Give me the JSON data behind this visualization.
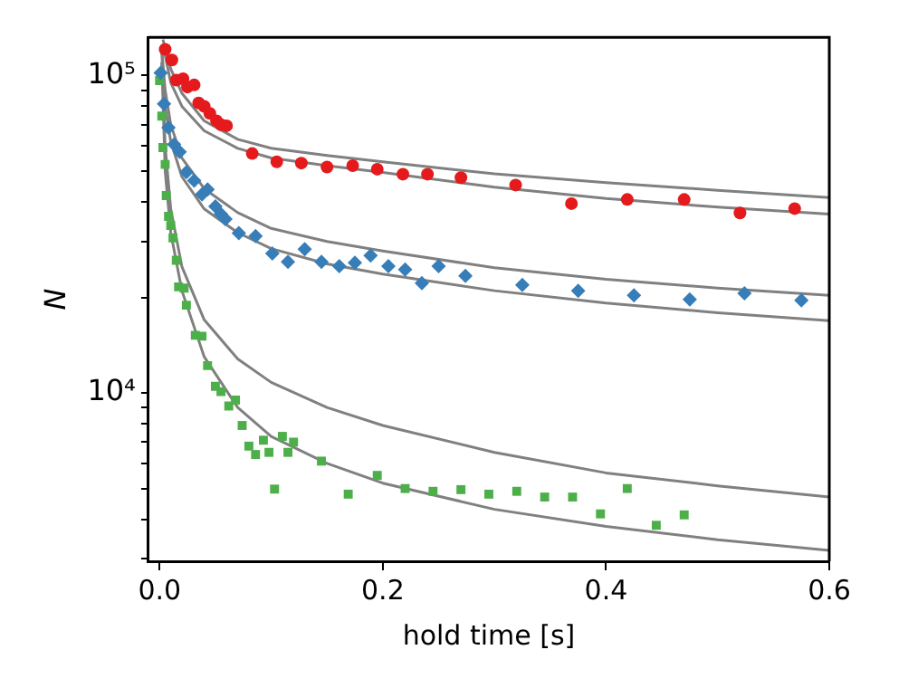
{
  "chart_data": {
    "type": "scatter",
    "xlabel": "hold time [s]",
    "ylabel": "N",
    "log": "y",
    "xlim": [
      -0.01,
      0.6
    ],
    "xticks": [
      {
        "value": 0,
        "label": "0.0"
      },
      0.2,
      0.4,
      {
        "value": 0.6,
        "label": "0.6"
      }
    ],
    "ylim": [
      2950,
      132000
    ],
    "yticks": [
      {
        "value": 3000,
        "label": null
      },
      {
        "value": 4000,
        "label": null
      },
      {
        "value": 5000,
        "label": null
      },
      {
        "value": 6000,
        "label": null
      },
      {
        "value": 7000,
        "label": null
      },
      {
        "value": 8000,
        "label": null
      },
      {
        "value": 9000,
        "label": null
      },
      {
        "value": 10000,
        "label": "10⁴"
      },
      {
        "value": 20000,
        "label": null
      },
      {
        "value": 30000,
        "label": null
      },
      {
        "value": 40000,
        "label": null
      },
      {
        "value": 50000,
        "label": null
      },
      {
        "value": 60000,
        "label": null
      },
      {
        "value": 70000,
        "label": null
      },
      {
        "value": 80000,
        "label": null
      },
      {
        "value": 90000,
        "label": null
      },
      {
        "value": 100000,
        "label": "10⁵"
      }
    ],
    "grid": false,
    "legend": false,
    "series": [
      {
        "type": "scatter",
        "marker": "circle",
        "color": "#e41a1c",
        "x": [
          0.005,
          0.011,
          0.015,
          0.021,
          0.025,
          0.031,
          0.035,
          0.04,
          0.045,
          0.051,
          0.055,
          0.06,
          0.083,
          0.105,
          0.127,
          0.15,
          0.173,
          0.195,
          0.218,
          0.24,
          0.27,
          0.319,
          0.369,
          0.419,
          0.47,
          0.52,
          0.569
        ],
        "values": [
          121000,
          112000,
          96800,
          97700,
          92000,
          93400,
          82000,
          80000,
          76000,
          72000,
          70000,
          69500,
          56800,
          53500,
          53000,
          51500,
          52000,
          50700,
          48900,
          48900,
          47700,
          45200,
          39500,
          40700,
          40700,
          36900,
          38100
        ]
      },
      {
        "type": "scatter",
        "marker": "diamond",
        "color": "#377eb8",
        "x": [
          0.001,
          0.004,
          0.008,
          0.013,
          0.018,
          0.024,
          0.031,
          0.038,
          0.043,
          0.05,
          0.055,
          0.059,
          0.071,
          0.086,
          0.101,
          0.115,
          0.13,
          0.145,
          0.161,
          0.175,
          0.189,
          0.205,
          0.22,
          0.235,
          0.25,
          0.274,
          0.325,
          0.375,
          0.425,
          0.475,
          0.524,
          0.575
        ],
        "values": [
          102000,
          81500,
          68500,
          60700,
          57500,
          49600,
          46700,
          42200,
          43800,
          38700,
          36600,
          35300,
          31900,
          31200,
          27500,
          25900,
          28400,
          25900,
          25100,
          25700,
          27100,
          25100,
          24500,
          22200,
          25100,
          23400,
          21900,
          21000,
          20300,
          19700,
          20600,
          19600
        ]
      },
      {
        "type": "scatter",
        "marker": "square",
        "color": "#4daf4a",
        "x": [
          0.0,
          0.002,
          0.003,
          0.005,
          0.006,
          0.008,
          0.01,
          0.012,
          0.015,
          0.017,
          0.022,
          0.024,
          0.032,
          0.038,
          0.043,
          0.05,
          0.055,
          0.062,
          0.068,
          0.074,
          0.08,
          0.086,
          0.093,
          0.098,
          0.103,
          0.11,
          0.115,
          0.12,
          0.145,
          0.169,
          0.195,
          0.22,
          0.245,
          0.27,
          0.295,
          0.32,
          0.345,
          0.37,
          0.395,
          0.419,
          0.445,
          0.47
        ],
        "values": [
          96400,
          74500,
          59300,
          52500,
          41900,
          36000,
          33700,
          30800,
          26200,
          21600,
          21400,
          18900,
          15200,
          15100,
          12200,
          10500,
          10100,
          9100,
          9500,
          7900,
          6800,
          6400,
          7100,
          6500,
          4980,
          7300,
          6500,
          7000,
          6100,
          4800,
          5500,
          5000,
          4900,
          4960,
          4800,
          4900,
          4700,
          4700,
          4160,
          5000,
          3830,
          4130
        ]
      },
      {
        "type": "line",
        "marker": "none",
        "color": "#808080",
        "x": [
          0.003,
          0.01,
          0.02,
          0.04,
          0.07,
          0.1,
          0.15,
          0.2,
          0.3,
          0.4,
          0.5,
          0.6
        ],
        "values": [
          130000,
          105000,
          88000,
          72000,
          63000,
          59000,
          56000,
          53500,
          49000,
          46000,
          43500,
          41300
        ]
      },
      {
        "type": "line",
        "marker": "none",
        "color": "#808080",
        "x": [
          0.003,
          0.01,
          0.02,
          0.04,
          0.07,
          0.1,
          0.15,
          0.2,
          0.3,
          0.4,
          0.5,
          0.6
        ],
        "values": [
          125000,
          95000,
          80000,
          67000,
          59000,
          55000,
          52000,
          49500,
          44500,
          41000,
          38500,
          36600
        ]
      },
      {
        "type": "line",
        "marker": "none",
        "color": "#808080",
        "x": [
          0.002,
          0.005,
          0.01,
          0.02,
          0.04,
          0.07,
          0.1,
          0.15,
          0.2,
          0.3,
          0.4,
          0.5,
          0.6
        ],
        "values": [
          120000,
          90000,
          70000,
          55000,
          44000,
          37000,
          33000,
          30000,
          28000,
          24800,
          22800,
          21400,
          20300
        ]
      },
      {
        "type": "line",
        "marker": "none",
        "color": "#808080",
        "x": [
          0.002,
          0.005,
          0.01,
          0.02,
          0.04,
          0.07,
          0.1,
          0.15,
          0.2,
          0.3,
          0.4,
          0.5,
          0.6
        ],
        "values": [
          110000,
          80000,
          62000,
          48000,
          38000,
          32000,
          28500,
          25500,
          23700,
          21000,
          19200,
          17900,
          16900
        ]
      },
      {
        "type": "line",
        "marker": "none",
        "color": "#808080",
        "x": [
          0.002,
          0.005,
          0.01,
          0.02,
          0.04,
          0.07,
          0.1,
          0.15,
          0.2,
          0.3,
          0.4,
          0.5,
          0.6
        ],
        "values": [
          120000,
          60000,
          38000,
          25000,
          17000,
          12800,
          10800,
          9000,
          7900,
          6500,
          5600,
          5100,
          4700
        ]
      },
      {
        "type": "line",
        "marker": "none",
        "color": "#808080",
        "x": [
          0.002,
          0.005,
          0.01,
          0.02,
          0.04,
          0.07,
          0.1,
          0.15,
          0.2,
          0.3,
          0.4,
          0.5,
          0.6
        ],
        "values": [
          110000,
          50000,
          32000,
          21000,
          13000,
          9000,
          7300,
          6000,
          5200,
          4300,
          3800,
          3450,
          3190
        ]
      }
    ]
  }
}
